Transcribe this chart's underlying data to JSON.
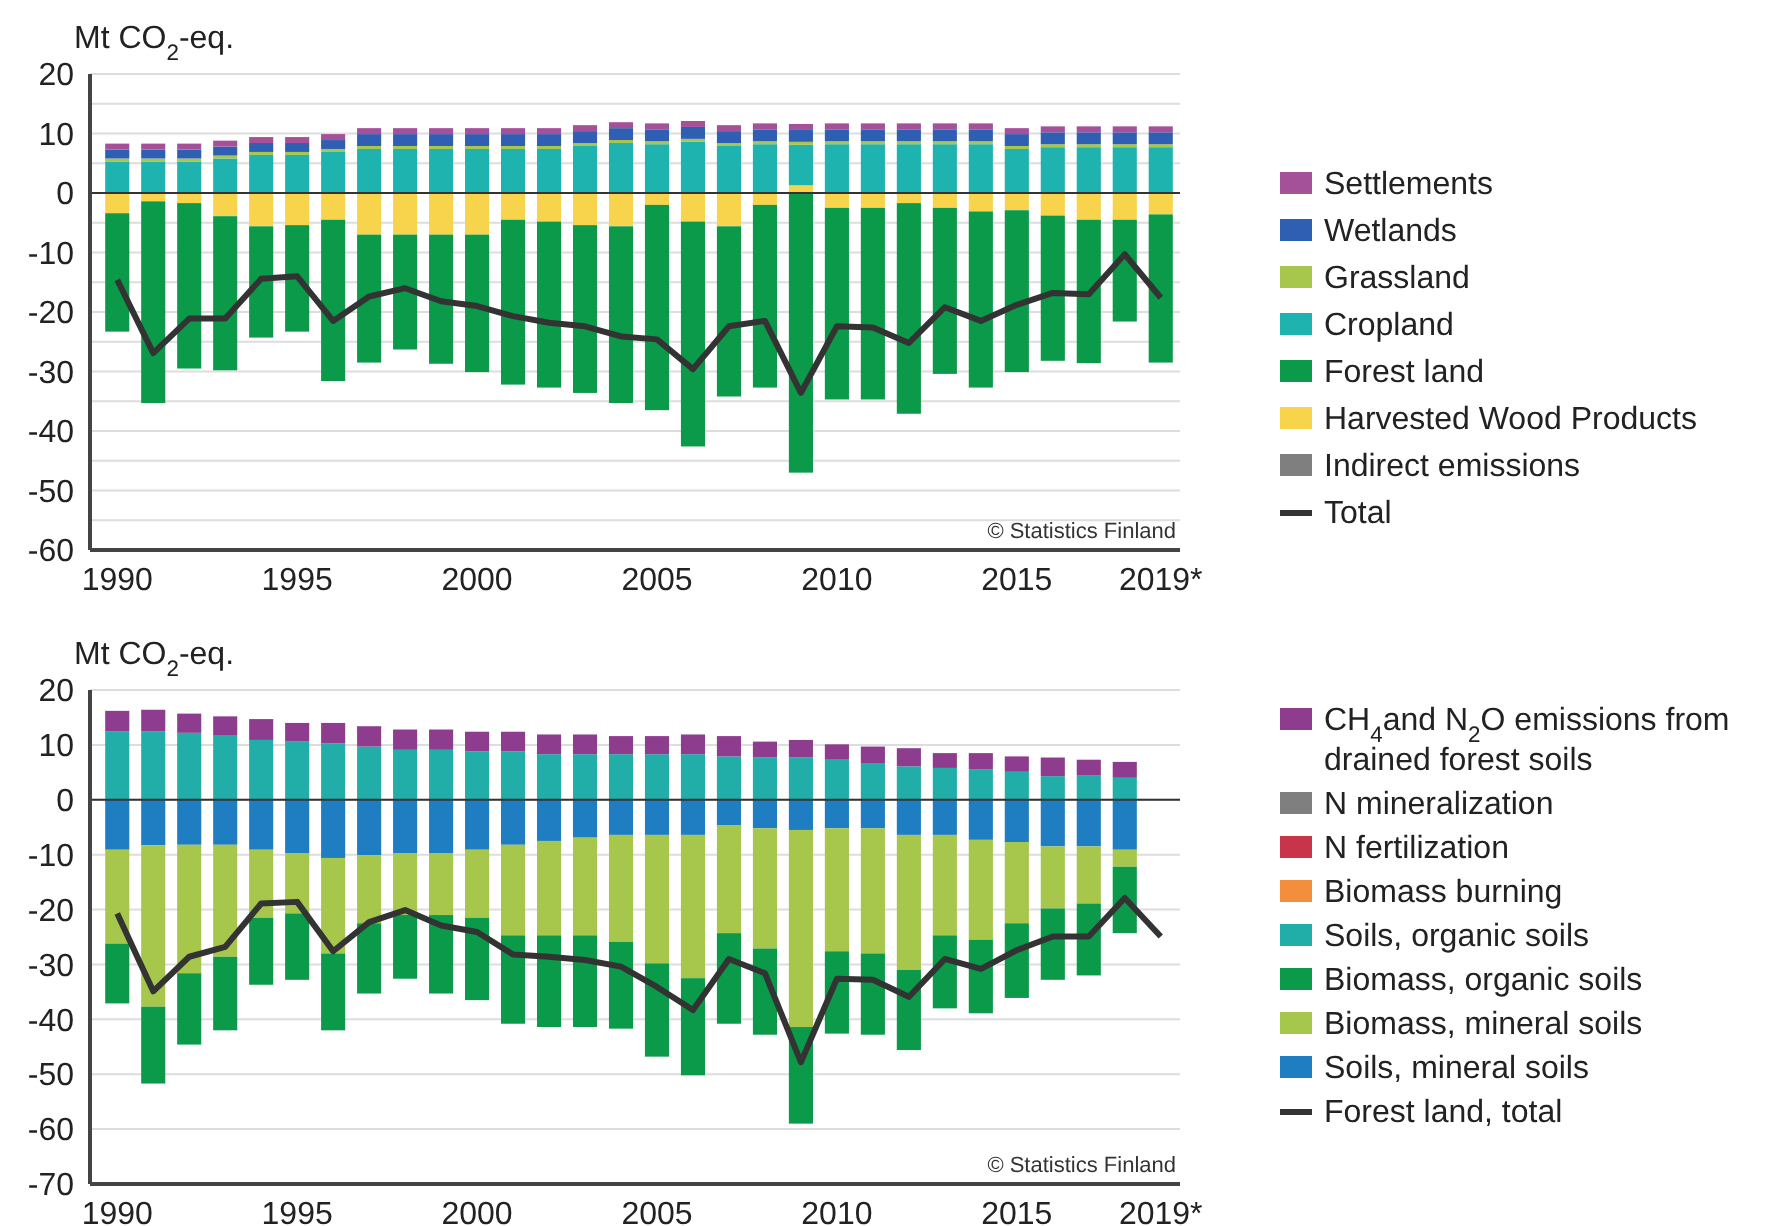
{
  "chart_data": [
    {
      "type": "bar",
      "stacked": true,
      "ylabel": "Mt CO$_{2}$-eq.",
      "categories": [
        "1990",
        null,
        null,
        null,
        null,
        "1995",
        null,
        null,
        null,
        null,
        "2000",
        null,
        null,
        null,
        null,
        "2005",
        null,
        null,
        null,
        null,
        "2010",
        null,
        null,
        null,
        null,
        "2015",
        null,
        null,
        null,
        "2019*"
      ],
      "ylim": [
        -60,
        20
      ],
      "yticks": [
        -60,
        {
          "value": -55,
          "label": null
        },
        -50,
        {
          "value": -45,
          "label": null
        },
        -40,
        {
          "value": -35,
          "label": null
        },
        -30,
        {
          "value": -25,
          "label": null
        },
        -20,
        {
          "value": -15,
          "label": null
        },
        -10,
        {
          "value": -5,
          "label": null
        },
        0,
        {
          "value": 5,
          "label": null
        },
        10,
        {
          "value": 15,
          "label": null
        },
        20
      ],
      "grid": "y",
      "legend": "right",
      "annotations": [
        "© Statistics Finland"
      ],
      "series": [
        {
          "name": "Indirect emissions",
          "color": "#7f7f7f",
          "values": [
            null,
            null,
            null,
            null,
            null,
            null,
            null,
            null,
            null,
            null,
            null,
            null,
            null,
            null,
            null,
            null,
            null,
            null,
            null,
            null,
            null,
            null,
            null,
            null,
            null,
            null,
            null,
            null,
            null,
            null
          ]
        },
        {
          "name": "Harvested Wood Products",
          "color": "#f7d44c",
          "values": [
            -3.4,
            -1.4,
            -1.7,
            -3.9,
            -5.6,
            -5.4,
            -4.5,
            -7,
            -7,
            -7,
            -7,
            -4.5,
            -4.8,
            -5.4,
            -5.6,
            -2,
            -4.8,
            -5.6,
            -2,
            1.3,
            -2.5,
            -2.5,
            -1.7,
            -2.5,
            -3.1,
            -2.9,
            -3.8,
            -4.5,
            -4.5,
            -3.6
          ]
        },
        {
          "name": "Forest land",
          "color": "#0a9a4a",
          "values": [
            -19.9,
            -33.9,
            -27.8,
            -25.9,
            -18.7,
            -17.9,
            -27.1,
            -21.5,
            -19.3,
            -21.7,
            -23.1,
            -27.7,
            -27.9,
            -28.2,
            -29.7,
            -34.5,
            -37.8,
            -28.6,
            -30.7,
            -47,
            -32.2,
            -32.2,
            -35.4,
            -27.9,
            -29.6,
            -27.2,
            -24.4,
            -24.1,
            -17.1,
            -24.9
          ]
        },
        {
          "name": "Cropland",
          "color": "#1fb3b0",
          "values": [
            5.3,
            5.3,
            5.3,
            5.8,
            6.4,
            6.4,
            6.9,
            7.4,
            7.4,
            7.4,
            7.4,
            7.4,
            7.4,
            7.9,
            8.4,
            8.2,
            8.6,
            7.9,
            8.2,
            6.8,
            8.2,
            8.2,
            8.2,
            8.2,
            8.2,
            7.4,
            7.7,
            7.7,
            7.7,
            7.7
          ]
        },
        {
          "name": "Grassland",
          "color": "#a6c64c",
          "values": [
            0.5,
            0.5,
            0.5,
            0.5,
            0.5,
            0.5,
            0.5,
            0.5,
            0.5,
            0.5,
            0.5,
            0.5,
            0.5,
            0.5,
            0.5,
            0.5,
            0.5,
            0.5,
            0.5,
            0.5,
            0.5,
            0.5,
            0.5,
            0.5,
            0.5,
            0.5,
            0.5,
            0.5,
            0.5,
            0.5
          ]
        },
        {
          "name": "Wetlands",
          "color": "#2f5fb3",
          "values": [
            1.5,
            1.5,
            1.5,
            1.5,
            1.5,
            1.5,
            1.5,
            2,
            2,
            2,
            2,
            2,
            2,
            2,
            2,
            2,
            2,
            2,
            2,
            2,
            2,
            2,
            2,
            2,
            2,
            2,
            2,
            2,
            2,
            2
          ]
        },
        {
          "name": "Settlements",
          "color": "#a4519a",
          "values": [
            1,
            1,
            1,
            1,
            1,
            1,
            1,
            1,
            1,
            1,
            1,
            1,
            1,
            1,
            1,
            1,
            1,
            1,
            1,
            1,
            1,
            1,
            1,
            1,
            1,
            1,
            1,
            1,
            1,
            1
          ]
        },
        {
          "name": "Total",
          "type": "line",
          "color": "#333333",
          "values": [
            -14.6,
            -26.9,
            -21.1,
            -21.1,
            -14.4,
            -14,
            -21.5,
            -17.4,
            -16,
            -18.2,
            -19,
            -20.7,
            -21.8,
            -22.4,
            -24.1,
            -24.6,
            -29.6,
            -22.4,
            -21.5,
            -33.6,
            -22.4,
            -22.6,
            -25.2,
            -19.2,
            -21.5,
            -18.8,
            -16.8,
            -17,
            -10.3,
            -17.6
          ]
        }
      ]
    },
    {
      "type": "bar",
      "stacked": true,
      "ylabel": "Mt CO$_{2}$-eq.",
      "categories": [
        "1990",
        null,
        null,
        null,
        null,
        "1995",
        null,
        null,
        null,
        null,
        "2000",
        null,
        null,
        null,
        null,
        "2005",
        null,
        null,
        null,
        null,
        "2010",
        null,
        null,
        null,
        null,
        "2015",
        null,
        null,
        null,
        "2019*"
      ],
      "ylim": [
        -70,
        20
      ],
      "yticks": [
        -70,
        -60,
        -50,
        -40,
        -30,
        -20,
        -10,
        0,
        10,
        20
      ],
      "grid": "y",
      "legend": "right",
      "annotations": [
        "© Statistics Finland"
      ],
      "series": [
        {
          "name": "Soils, mineral soils",
          "color": "#1f7ec1",
          "values": [
            -9.1,
            -8.3,
            -8.2,
            -8.2,
            -9.1,
            -9.7,
            -10.6,
            -10.1,
            -9.7,
            -9.7,
            -9.1,
            -8.2,
            -7.5,
            -6.9,
            -6.4,
            -6.4,
            -6.4,
            -4.6,
            -5.2,
            -5.5,
            -5.2,
            -5.2,
            -6.4,
            -6.4,
            -7.3,
            -7.7,
            -8.5,
            -8.5,
            -9.1,
            null
          ]
        },
        {
          "name": "Biomass, mineral soils",
          "color": "#a6c64c",
          "values": [
            -17.1,
            -29.4,
            -23.4,
            -20.4,
            -12.4,
            -11,
            -17.4,
            -12.4,
            -11.3,
            -11.3,
            -12.4,
            -16.5,
            -17.2,
            -17.8,
            -19.5,
            -23.4,
            -26.1,
            -19.7,
            -21.9,
            -35.9,
            -22.4,
            -22.8,
            -24.6,
            -18.3,
            -18.2,
            -14.8,
            -11.3,
            -10.4,
            -3.1,
            null
          ]
        },
        {
          "name": "Biomass, organic soils",
          "color": "#0a9a4a",
          "values": [
            -10.9,
            -14,
            -13,
            -13.4,
            -12.2,
            -12.1,
            -14,
            -12.8,
            -11.6,
            -14.3,
            -15,
            -16.1,
            -16.7,
            -16.7,
            -15.8,
            -17,
            -17.7,
            -16.5,
            -15.7,
            -17.6,
            -15,
            -14.8,
            -14.6,
            -13.3,
            -13.4,
            -13.6,
            -13,
            -13.1,
            -12.1,
            null
          ]
        },
        {
          "name": "Soils, organic soils",
          "color": "#21aea8",
          "values": [
            12.5,
            12.5,
            12.2,
            11.8,
            10.9,
            10.6,
            10.3,
            9.7,
            9.1,
            9.1,
            8.8,
            8.8,
            8.3,
            8.3,
            8.3,
            8.3,
            8.3,
            7.9,
            7.7,
            7.7,
            7.3,
            6.7,
            6.1,
            5.8,
            5.5,
            5.1,
            4.3,
            4.5,
            4,
            null
          ]
        },
        {
          "name": "Biomass burning",
          "color": "#f28e3c",
          "values": [
            null,
            null,
            null,
            null,
            null,
            null,
            null,
            null,
            null,
            null,
            null,
            null,
            null,
            null,
            null,
            null,
            null,
            null,
            null,
            null,
            null,
            null,
            null,
            null,
            null,
            null,
            null,
            null,
            null,
            null
          ]
        },
        {
          "name": "N fertilization",
          "color": "#c8344a",
          "values": [
            null,
            null,
            null,
            null,
            null,
            null,
            null,
            null,
            null,
            null,
            null,
            null,
            null,
            null,
            null,
            null,
            null,
            null,
            null,
            null,
            null,
            null,
            null,
            null,
            null,
            null,
            null,
            null,
            null,
            null
          ]
        },
        {
          "name": "N mineralization",
          "color": "#7f7f7f",
          "values": [
            null,
            null,
            null,
            null,
            null,
            null,
            null,
            null,
            null,
            null,
            null,
            null,
            null,
            null,
            null,
            null,
            null,
            null,
            null,
            null,
            null,
            null,
            null,
            null,
            null,
            null,
            null,
            null,
            null,
            null
          ]
        },
        {
          "name": "CH$_{4}$and N$_{2}$O emissions from drained forest soils",
          "color": "#8e3d8e",
          "values": [
            3.7,
            3.9,
            3.5,
            3.4,
            3.8,
            3.4,
            3.7,
            3.7,
            3.7,
            3.7,
            3.6,
            3.6,
            3.6,
            3.6,
            3.3,
            3.3,
            3.6,
            3.7,
            2.9,
            3.2,
            2.8,
            3,
            3.3,
            2.7,
            3,
            2.8,
            3.4,
            2.8,
            2.9,
            null
          ]
        },
        {
          "name": "Forest land, total",
          "type": "line",
          "color": "#333333",
          "values": [
            -20.7,
            -34.9,
            -28.6,
            -26.8,
            -18.9,
            -18.6,
            -27.6,
            -22.3,
            -20.1,
            -22.9,
            -24.1,
            -28.2,
            -28.6,
            -29.2,
            -30.4,
            -34.1,
            -38.3,
            -29,
            -31.6,
            -47.8,
            -32.6,
            -32.8,
            -35.9,
            -29,
            -30.8,
            -27.4,
            -24.9,
            -24.9,
            -17.9,
            -24.9
          ]
        }
      ]
    }
  ]
}
